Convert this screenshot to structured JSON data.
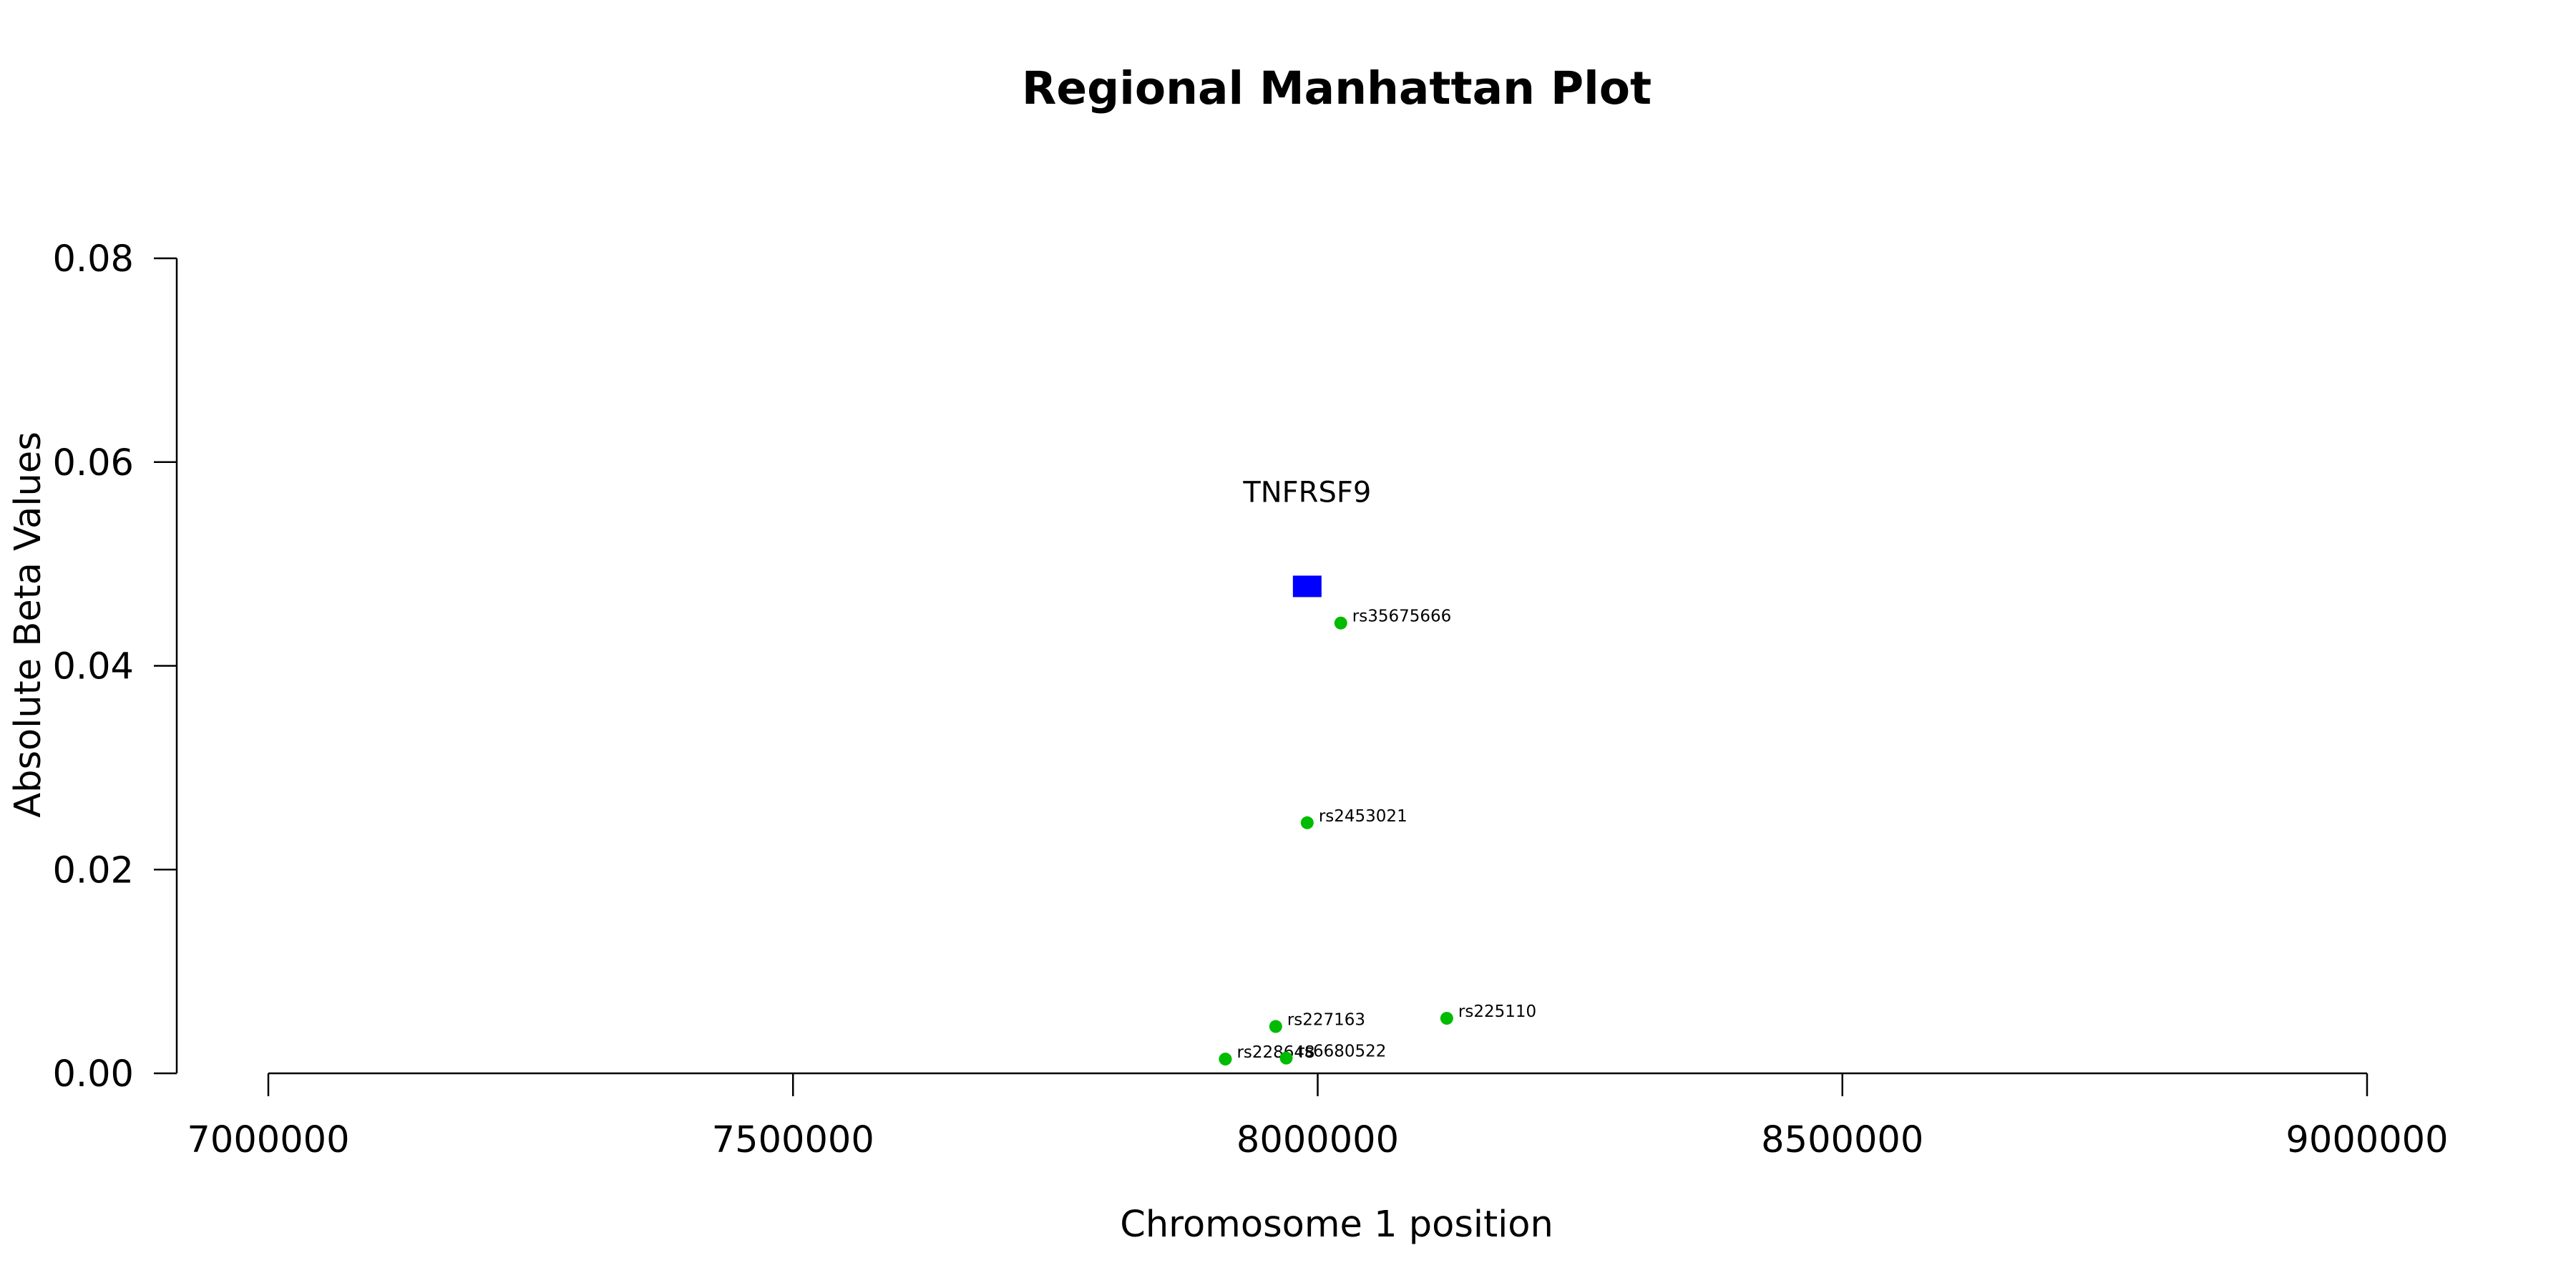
{
  "chart_data": {
    "type": "scatter",
    "title": "Regional Manhattan Plot",
    "xlabel": "Chromosome 1 position",
    "ylabel": "Absolute Beta Values",
    "xlim": [
      7000000,
      9000000
    ],
    "ylim": [
      0,
      0.08
    ],
    "x_ticks": [
      7000000,
      7500000,
      8000000,
      8500000,
      9000000
    ],
    "x_tick_labels": [
      "7000000",
      "7500000",
      "8000000",
      "8500000",
      "9000000"
    ],
    "y_ticks": [
      0,
      0.02,
      0.04,
      0.06,
      0.08
    ],
    "y_tick_labels": [
      "0.00",
      "0.02",
      "0.04",
      "0.06",
      "0.08"
    ],
    "grid": false,
    "legend": false,
    "gene": {
      "name": "TNFRSF9",
      "x": 7990000,
      "y": 0.0478,
      "marker": "square",
      "color": "#0000ff"
    },
    "snps": {
      "color": "#00bb00",
      "points": [
        {
          "label": "rs35675666",
          "x": 8022000,
          "y": 0.0442
        },
        {
          "label": "rs2453021",
          "x": 7990000,
          "y": 0.0246
        },
        {
          "label": "rs227163",
          "x": 7960000,
          "y": 0.0046
        },
        {
          "label": "rs225110",
          "x": 8123000,
          "y": 0.0054
        },
        {
          "label": "rs228648",
          "x": 7912000,
          "y": 0.0014
        },
        {
          "label": "rs6680522",
          "x": 7970000,
          "y": 0.0015
        }
      ]
    }
  }
}
